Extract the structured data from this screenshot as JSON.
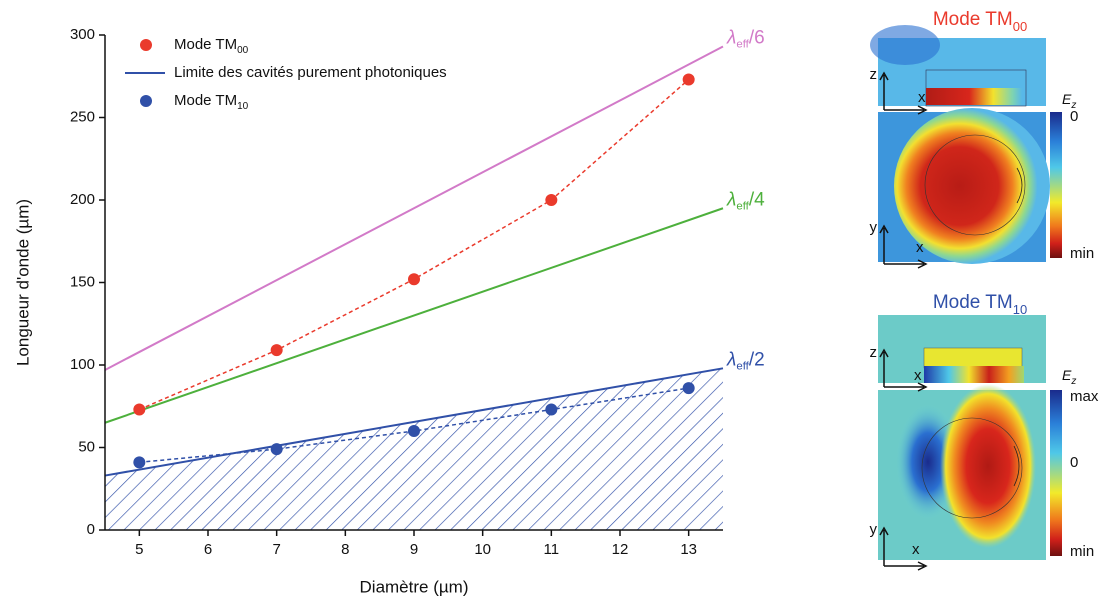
{
  "chart_data": {
    "type": "scatter",
    "xlabel": "Diamètre (µm)",
    "ylabel": "Longueur d'onde (µm)",
    "xlim": [
      4.5,
      13.5
    ],
    "ylim": [
      0,
      300
    ],
    "xticks": [
      5,
      6,
      7,
      8,
      9,
      10,
      11,
      12,
      13
    ],
    "yticks": [
      0,
      50,
      100,
      150,
      200,
      250,
      300
    ],
    "series": [
      {
        "name": "Mode TM",
        "name_sub": "00",
        "color": "#ea3a2c",
        "style": "points-dashed",
        "x": [
          5,
          7,
          9,
          11,
          13
        ],
        "values": [
          73,
          109,
          152,
          200,
          273
        ]
      },
      {
        "name": "Limite des cavités purement photoniques",
        "color": "#3050a8",
        "style": "line-hatched",
        "x": [
          4.5,
          13.5
        ],
        "values": [
          33,
          98
        ],
        "label": "λ",
        "label_sub": "eff",
        "label_tail": "/2"
      },
      {
        "name": "Mode TM",
        "name_sub": "10",
        "color": "#3050a8",
        "style": "points-dashed",
        "x": [
          5,
          7,
          9,
          11,
          13
        ],
        "values": [
          41,
          49,
          60,
          73,
          86
        ]
      }
    ],
    "lines": [
      {
        "label": "λ",
        "label_sub": "eff",
        "label_tail": "/6",
        "color": "#d27ac8",
        "x": [
          4.5,
          13.5
        ],
        "values": [
          97,
          293
        ]
      },
      {
        "label": "λ",
        "label_sub": "eff",
        "label_tail": "/4",
        "color": "#4db03c",
        "x": [
          4.5,
          13.5
        ],
        "values": [
          65,
          195
        ]
      }
    ]
  },
  "panels": [
    {
      "title": "Mode TM",
      "title_sub": "00",
      "title_color": "#ea3a2c",
      "axes_top": [
        "z",
        "x"
      ],
      "axes_bottom": [
        "y",
        "x"
      ],
      "colorbar_label": "E",
      "colorbar_label_sub": "z",
      "colorbar_ticks": [
        "0",
        "min"
      ]
    },
    {
      "title": "Mode TM",
      "title_sub": "10",
      "title_color": "#3050a8",
      "axes_top": [
        "z",
        "x"
      ],
      "axes_bottom": [
        "y",
        "x"
      ],
      "colorbar_label": "E",
      "colorbar_label_sub": "z",
      "colorbar_ticks": [
        "max",
        "0",
        "min"
      ]
    }
  ]
}
